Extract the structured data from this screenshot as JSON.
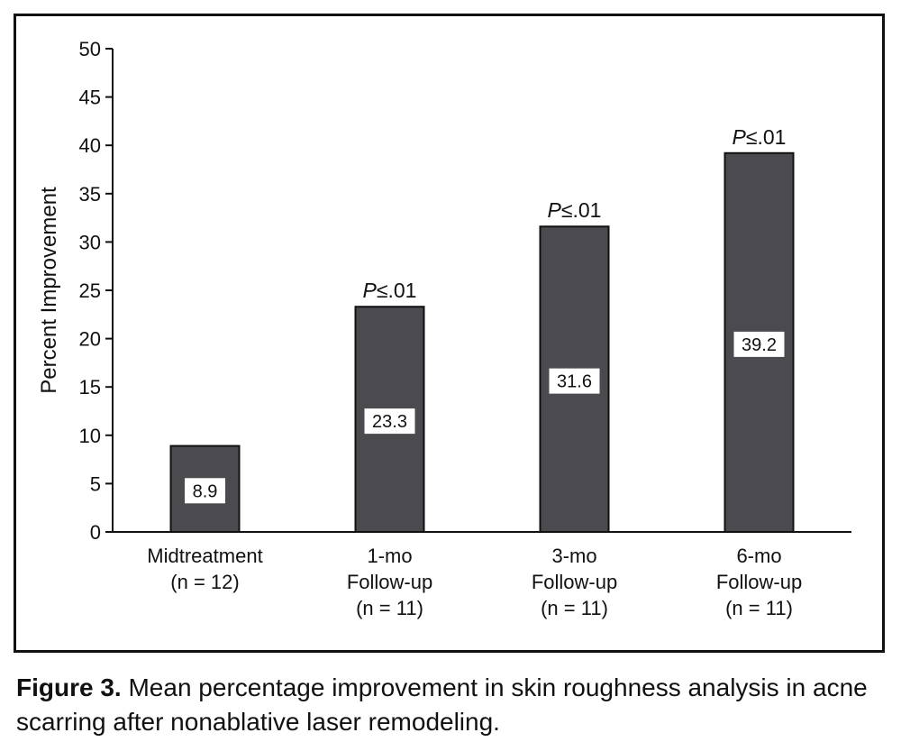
{
  "caption": {
    "label": "Figure 3.",
    "text": "Mean percentage improvement in skin roughness analysis in acne scarring after nonablative laser remodeling."
  },
  "chart_data": {
    "type": "bar",
    "title": "",
    "xlabel": "",
    "ylabel": "Percent Improvement",
    "ylim": [
      0,
      50
    ],
    "yticks": [
      0,
      5,
      10,
      15,
      20,
      25,
      30,
      35,
      40,
      45,
      50
    ],
    "categories": [
      [
        "Midtreatment",
        "(n = 12)"
      ],
      [
        "1-mo",
        "Follow-up",
        "(n = 11)"
      ],
      [
        "3-mo",
        "Follow-up",
        "(n = 11)"
      ],
      [
        "6-mo",
        "Follow-up",
        "(n = 11)"
      ]
    ],
    "values": [
      8.9,
      23.3,
      31.6,
      39.2
    ],
    "value_labels": [
      "8.9",
      "23.3",
      "31.6",
      "39.2"
    ],
    "annotations": [
      {
        "bar": 1,
        "italic": "P",
        "text": "≤.01"
      },
      {
        "bar": 2,
        "italic": "P",
        "text": "≤.01"
      },
      {
        "bar": 3,
        "italic": "P",
        "text": "≤.01"
      }
    ],
    "grid": false,
    "legend": "none",
    "bar_color": "#4a4a4f"
  }
}
